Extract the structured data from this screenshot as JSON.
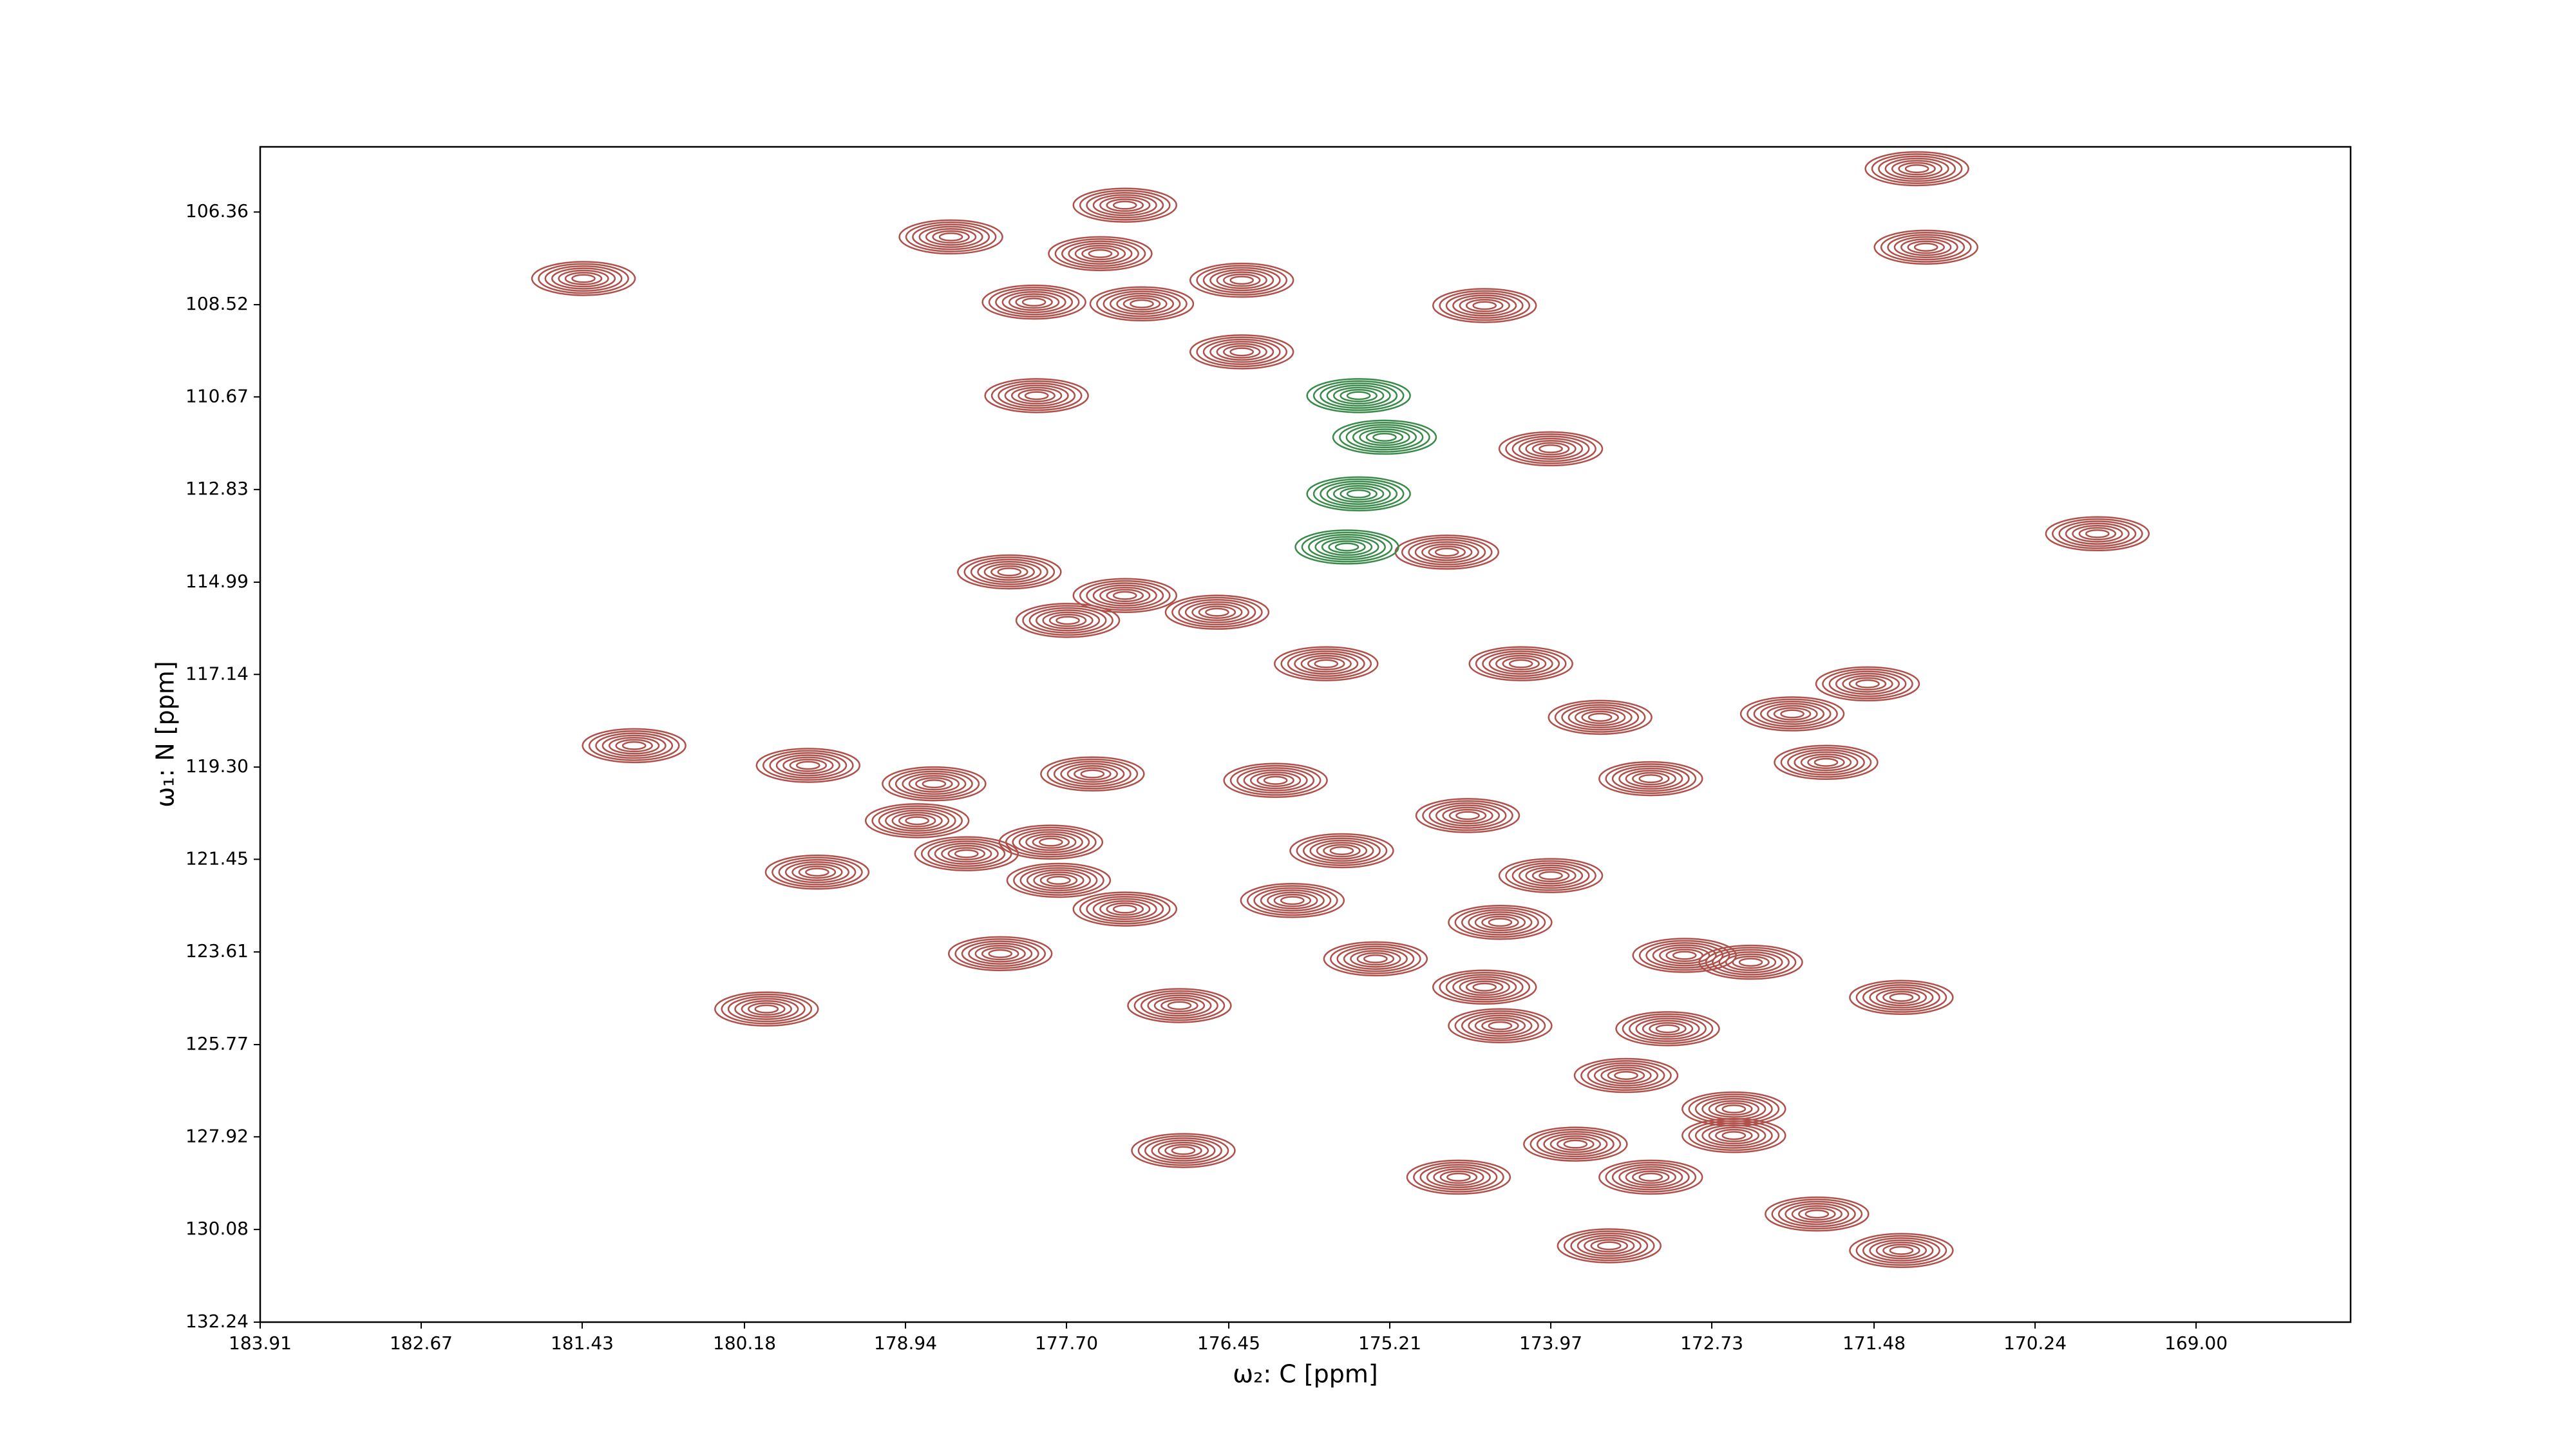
{
  "chart_data": {
    "type": "contour",
    "x_label": "ω₂: C [ppm]",
    "y_label": "ω₁: N [ppm]",
    "xlim": [
      183.91,
      167.81
    ],
    "ylim": [
      132.24,
      104.84
    ],
    "xticks": [
      183.91,
      182.67,
      181.43,
      180.18,
      178.94,
      {
        "value": 177.7,
        "label": "177.70"
      },
      176.45,
      175.21,
      173.97,
      172.73,
      171.48,
      170.24,
      {
        "value": 169.0,
        "label": "169.00"
      }
    ],
    "yticks": [
      106.36,
      108.52,
      110.67,
      112.83,
      114.99,
      117.14,
      {
        "value": 119.3,
        "label": "119.30"
      },
      121.45,
      123.61,
      125.77,
      127.92,
      130.08,
      132.24
    ],
    "series": [
      {
        "color": "#b0504a",
        "x": [
          171.15,
          171.08,
          177.25,
          178.59,
          177.44,
          177.95,
          177.12,
          176.35,
          174.48,
          176.35,
          177.93,
          173.97,
          169.76,
          174.77,
          178.14,
          177.25,
          177.69,
          176.54,
          175.7,
          174.2,
          181.03,
          179.69,
          178.72,
          177.5,
          176.09,
          174.61,
          171.85,
          172.11,
          171.53,
          173.59,
          173.2,
          178.85,
          177.82,
          175.58,
          179.62,
          178.47,
          177.76,
          177.25,
          173.97,
          175.96,
          178.21,
          175.32,
          174.36,
          172.94,
          172.43,
          174.48,
          180.01,
          176.83,
          174.36,
          173.07,
          171.27,
          173.39,
          172.56,
          172.56,
          173.78,
          174.68,
          173.2,
          176.8,
          171.92,
          173.52,
          171.27,
          181.42
        ],
        "values": [
          105.35,
          107.18,
          106.2,
          106.94,
          107.33,
          108.46,
          108.5,
          107.95,
          108.54,
          109.62,
          110.64,
          111.88,
          113.86,
          114.29,
          114.75,
          115.3,
          115.88,
          115.69,
          116.89,
          116.89,
          118.8,
          119.26,
          119.69,
          119.46,
          119.61,
          120.43,
          119.19,
          118.06,
          117.36,
          118.14,
          119.57,
          120.55,
          121.05,
          121.25,
          121.75,
          121.32,
          121.94,
          122.61,
          121.83,
          122.41,
          123.65,
          123.77,
          122.92,
          123.69,
          123.85,
          124.43,
          124.94,
          124.86,
          125.33,
          125.4,
          124.67,
          126.49,
          127.27,
          127.89,
          128.09,
          128.86,
          128.86,
          128.24,
          129.72,
          130.46,
          130.57,
          107.91
        ]
      },
      {
        "color": "#3a8a4a",
        "x": [
          175.45,
          175.25,
          175.45,
          175.54
        ],
        "values": [
          110.64,
          111.61,
          112.93,
          114.17
        ]
      }
    ]
  }
}
